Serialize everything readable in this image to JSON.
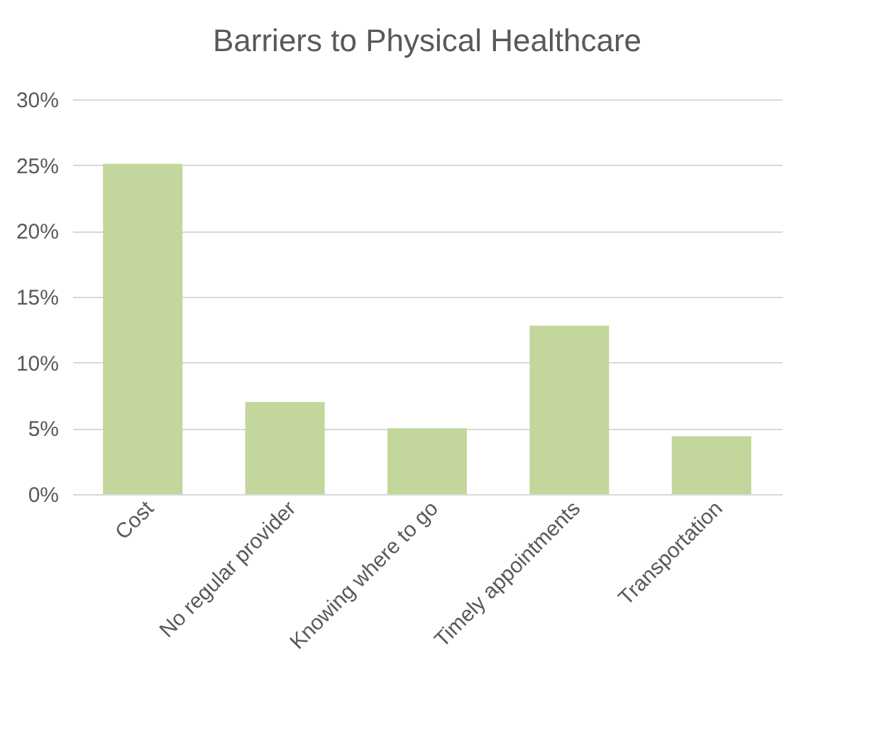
{
  "chart_data": {
    "type": "bar",
    "title": "Barriers to Physical Healthcare",
    "categories": [
      "Cost",
      "No regular provider",
      "Knowing where to go",
      "Timely appointments",
      "Transportation"
    ],
    "values": [
      25.1,
      7.0,
      5.0,
      12.8,
      4.4
    ],
    "color": "#c3d69b",
    "ylim": [
      0,
      30
    ],
    "yticks": [
      {
        "value": 0,
        "label": "0%"
      },
      {
        "value": 5,
        "label": "5%"
      },
      {
        "value": 10,
        "label": "10%"
      },
      {
        "value": 15,
        "label": "15%"
      },
      {
        "value": 20,
        "label": "20%"
      },
      {
        "value": 25,
        "label": "25%"
      },
      {
        "value": 30,
        "label": "30%"
      }
    ],
    "grid": "y"
  }
}
